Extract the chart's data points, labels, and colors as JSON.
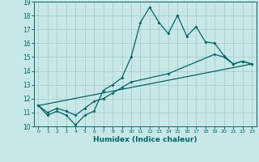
{
  "bg_color": "#c8e8e8",
  "grid_color": "#a8cccc",
  "line_color": "#006868",
  "line1_x": [
    0,
    1,
    2,
    3,
    4,
    5,
    6,
    7,
    8,
    9,
    10,
    11,
    12,
    13,
    14,
    15,
    16,
    17,
    18,
    19,
    20,
    21,
    22,
    23
  ],
  "line1_y": [
    11.5,
    10.8,
    11.1,
    10.8,
    10.1,
    10.8,
    11.1,
    12.6,
    13.0,
    13.5,
    15.0,
    17.5,
    18.6,
    17.5,
    16.7,
    18.0,
    16.5,
    17.2,
    16.1,
    16.0,
    15.1,
    14.5,
    14.7,
    14.5
  ],
  "line2_x": [
    0,
    1,
    2,
    3,
    4,
    5,
    6,
    7,
    8,
    9,
    10,
    14,
    19,
    20,
    21,
    22,
    23
  ],
  "line2_y": [
    11.5,
    11.0,
    11.3,
    11.1,
    10.8,
    11.3,
    11.8,
    12.0,
    12.4,
    12.8,
    13.2,
    13.8,
    15.2,
    15.0,
    14.5,
    14.7,
    14.5
  ],
  "line3_x": [
    0,
    23
  ],
  "line3_y": [
    11.5,
    14.5
  ],
  "xlabel": "Humidex (Indice chaleur)",
  "xlim": [
    -0.5,
    23.5
  ],
  "ylim": [
    10,
    19
  ],
  "yticks": [
    10,
    11,
    12,
    13,
    14,
    15,
    16,
    17,
    18,
    19
  ],
  "xticks": [
    0,
    1,
    2,
    3,
    4,
    5,
    6,
    7,
    8,
    9,
    10,
    11,
    12,
    13,
    14,
    15,
    16,
    17,
    18,
    19,
    20,
    21,
    22,
    23
  ]
}
